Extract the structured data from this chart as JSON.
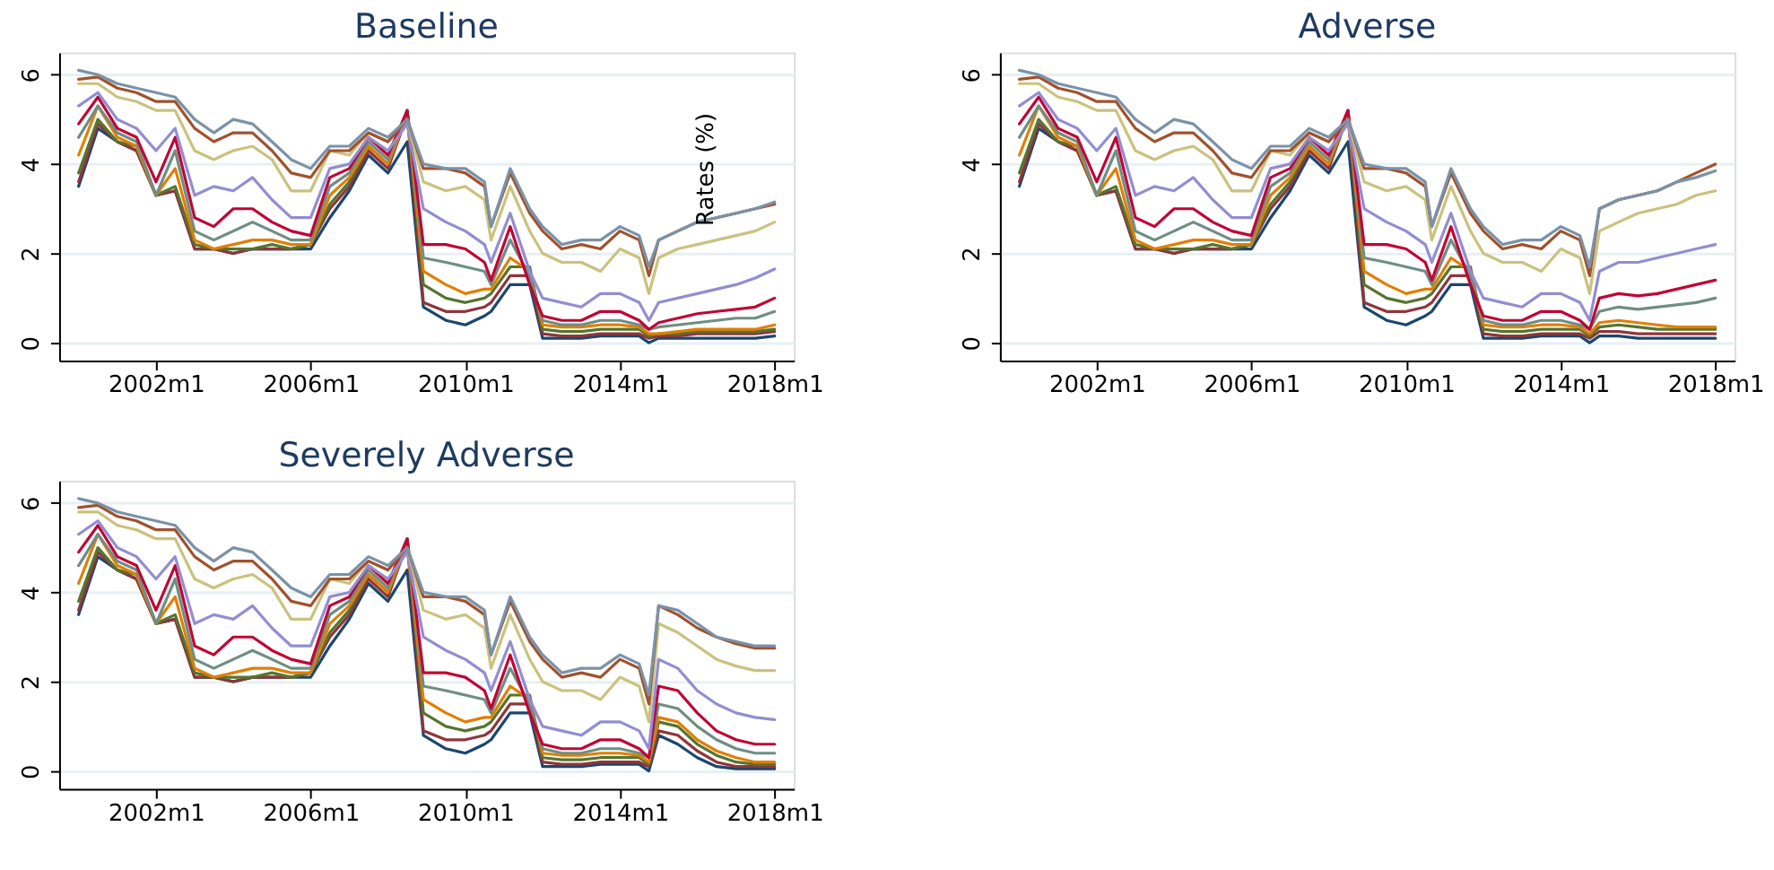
{
  "chart_data": [
    {
      "type": "line",
      "title": "Baseline",
      "x": [
        "2000-01",
        "2000-07",
        "2001-01",
        "2001-07",
        "2002-01",
        "2002-07",
        "2003-01",
        "2003-07",
        "2004-01",
        "2004-07",
        "2005-01",
        "2005-07",
        "2006-01",
        "2006-07",
        "2007-01",
        "2007-07",
        "2008-01",
        "2008-07",
        "2008-12",
        "2009-07",
        "2010-01",
        "2010-07",
        "2010-09",
        "2011-03",
        "2011-09",
        "2012-01",
        "2012-07",
        "2013-01",
        "2013-07",
        "2014-01",
        "2014-07",
        "2014-10",
        "2015-01",
        "2015-07",
        "2016-01",
        "2016-07",
        "2017-01",
        "2017-07",
        "2018-01"
      ],
      "xlim": [
        "1999-07",
        "2018-07"
      ],
      "xticks": [
        {
          "value": "2002-01",
          "label": "2002m1"
        },
        {
          "value": "2006-01",
          "label": "2006m1"
        },
        {
          "value": "2010-01",
          "label": "2010m1"
        },
        {
          "value": "2014-01",
          "label": "2014m1"
        },
        {
          "value": "2018-01",
          "label": "2018m1"
        }
      ],
      "ylim": [
        -0.4,
        6.5
      ],
      "yticks": [
        0,
        2,
        4,
        6
      ],
      "grid": "y",
      "annotations": [
        "Rates (%)"
      ],
      "series": [
        {
          "color": "#1a476f",
          "values": [
            3.5,
            4.8,
            4.5,
            4.3,
            3.3,
            3.4,
            2.1,
            2.1,
            2.0,
            2.1,
            2.1,
            2.1,
            2.1,
            2.8,
            3.4,
            4.2,
            3.8,
            4.5,
            0.8,
            0.5,
            0.4,
            0.6,
            0.7,
            1.3,
            1.3,
            0.1,
            0.1,
            0.1,
            0.15,
            0.15,
            0.15,
            0.0,
            0.1,
            0.1,
            0.1,
            0.1,
            0.1,
            0.1,
            0.15
          ]
        },
        {
          "color": "#90353b",
          "values": [
            3.6,
            4.9,
            4.5,
            4.3,
            3.3,
            3.4,
            2.1,
            2.1,
            2.0,
            2.1,
            2.1,
            2.1,
            2.2,
            3.0,
            3.5,
            4.3,
            3.9,
            5.1,
            0.9,
            0.7,
            0.7,
            0.8,
            0.9,
            1.5,
            1.5,
            0.2,
            0.15,
            0.15,
            0.2,
            0.2,
            0.2,
            0.1,
            0.15,
            0.15,
            0.2,
            0.2,
            0.2,
            0.2,
            0.25
          ]
        },
        {
          "color": "#55752f",
          "values": [
            3.8,
            5.0,
            4.5,
            4.4,
            3.3,
            3.5,
            2.2,
            2.1,
            2.1,
            2.1,
            2.2,
            2.1,
            2.2,
            3.1,
            3.6,
            4.4,
            4.0,
            5.2,
            1.3,
            1.0,
            0.9,
            1.0,
            1.1,
            1.7,
            1.7,
            0.3,
            0.25,
            0.25,
            0.3,
            0.3,
            0.3,
            0.15,
            0.2,
            0.2,
            0.25,
            0.25,
            0.25,
            0.25,
            0.3
          ]
        },
        {
          "color": "#e37e00",
          "values": [
            4.2,
            5.3,
            4.6,
            4.4,
            3.3,
            3.9,
            2.3,
            2.1,
            2.2,
            2.3,
            2.3,
            2.2,
            2.2,
            3.3,
            3.7,
            4.4,
            4.0,
            5.1,
            1.6,
            1.3,
            1.1,
            1.2,
            1.2,
            1.9,
            1.6,
            0.4,
            0.35,
            0.35,
            0.4,
            0.4,
            0.35,
            0.2,
            0.2,
            0.25,
            0.3,
            0.3,
            0.3,
            0.3,
            0.4
          ]
        },
        {
          "color": "#6e8e84",
          "values": [
            4.6,
            5.3,
            4.7,
            4.5,
            3.3,
            4.3,
            2.5,
            2.3,
            2.5,
            2.7,
            2.5,
            2.3,
            2.3,
            3.5,
            3.8,
            4.5,
            4.1,
            5.2,
            1.9,
            1.8,
            1.7,
            1.6,
            1.3,
            2.3,
            1.5,
            0.5,
            0.4,
            0.4,
            0.5,
            0.5,
            0.4,
            0.3,
            0.35,
            0.4,
            0.45,
            0.5,
            0.55,
            0.55,
            0.7
          ]
        },
        {
          "color": "#c10534",
          "values": [
            4.9,
            5.5,
            4.8,
            4.6,
            3.6,
            4.6,
            2.8,
            2.6,
            3.0,
            3.0,
            2.7,
            2.5,
            2.4,
            3.7,
            3.9,
            4.6,
            4.2,
            5.2,
            2.2,
            2.2,
            2.1,
            1.8,
            1.4,
            2.6,
            1.3,
            0.6,
            0.5,
            0.5,
            0.7,
            0.7,
            0.5,
            0.3,
            0.45,
            0.55,
            0.65,
            0.7,
            0.75,
            0.8,
            1.0
          ]
        },
        {
          "color": "#938dd2",
          "values": [
            5.3,
            5.6,
            5.0,
            4.8,
            4.3,
            4.8,
            3.3,
            3.5,
            3.4,
            3.7,
            3.2,
            2.8,
            2.8,
            3.9,
            4.0,
            4.6,
            4.3,
            4.9,
            3.0,
            2.7,
            2.5,
            2.2,
            1.8,
            2.9,
            1.6,
            1.0,
            0.9,
            0.8,
            1.1,
            1.1,
            0.9,
            0.5,
            0.9,
            1.0,
            1.1,
            1.2,
            1.3,
            1.45,
            1.65
          ]
        },
        {
          "color": "#cac27e",
          "values": [
            5.8,
            5.8,
            5.5,
            5.4,
            5.2,
            5.2,
            4.3,
            4.1,
            4.3,
            4.4,
            4.1,
            3.4,
            3.4,
            4.3,
            4.2,
            4.7,
            4.5,
            5.0,
            3.6,
            3.4,
            3.5,
            3.2,
            2.3,
            3.5,
            2.5,
            2.0,
            1.8,
            1.8,
            1.6,
            2.1,
            1.9,
            1.1,
            1.9,
            2.1,
            2.2,
            2.3,
            2.4,
            2.5,
            2.7
          ]
        },
        {
          "color": "#a0522d",
          "values": [
            5.9,
            5.95,
            5.7,
            5.6,
            5.4,
            5.4,
            4.8,
            4.5,
            4.7,
            4.7,
            4.3,
            3.8,
            3.7,
            4.3,
            4.3,
            4.7,
            4.5,
            5.0,
            3.9,
            3.9,
            3.8,
            3.5,
            2.6,
            3.8,
            2.9,
            2.5,
            2.1,
            2.2,
            2.1,
            2.5,
            2.3,
            1.5,
            2.3,
            2.5,
            2.7,
            2.8,
            2.9,
            3.0,
            3.1
          ]
        },
        {
          "color": "#7b92a8",
          "values": [
            6.1,
            6.0,
            5.8,
            5.7,
            5.6,
            5.5,
            5.0,
            4.7,
            5.0,
            4.9,
            4.5,
            4.1,
            3.9,
            4.4,
            4.4,
            4.8,
            4.6,
            5.0,
            4.0,
            3.9,
            3.9,
            3.6,
            2.6,
            3.9,
            3.0,
            2.6,
            2.2,
            2.3,
            2.3,
            2.6,
            2.4,
            1.7,
            2.3,
            2.5,
            2.7,
            2.8,
            2.9,
            3.0,
            3.15
          ]
        }
      ]
    },
    {
      "type": "line",
      "title": "Adverse",
      "x": [
        "2000-01",
        "2000-07",
        "2001-01",
        "2001-07",
        "2002-01",
        "2002-07",
        "2003-01",
        "2003-07",
        "2004-01",
        "2004-07",
        "2005-01",
        "2005-07",
        "2006-01",
        "2006-07",
        "2007-01",
        "2007-07",
        "2008-01",
        "2008-07",
        "2008-12",
        "2009-07",
        "2010-01",
        "2010-07",
        "2010-09",
        "2011-03",
        "2011-09",
        "2012-01",
        "2012-07",
        "2013-01",
        "2013-07",
        "2014-01",
        "2014-07",
        "2014-10",
        "2015-01",
        "2015-07",
        "2016-01",
        "2016-07",
        "2017-01",
        "2017-07",
        "2018-01"
      ],
      "xlim": [
        "1999-07",
        "2018-07"
      ],
      "xticks": [
        {
          "value": "2002-01",
          "label": "2002m1"
        },
        {
          "value": "2006-01",
          "label": "2006m1"
        },
        {
          "value": "2010-01",
          "label": "2010m1"
        },
        {
          "value": "2014-01",
          "label": "2014m1"
        },
        {
          "value": "2018-01",
          "label": "2018m1"
        }
      ],
      "ylim": [
        -0.4,
        6.5
      ],
      "yticks": [
        0,
        2,
        4,
        6
      ],
      "grid": "y",
      "series": [
        {
          "color": "#1a476f",
          "values": [
            3.5,
            4.8,
            4.5,
            4.3,
            3.3,
            3.4,
            2.1,
            2.1,
            2.0,
            2.1,
            2.1,
            2.1,
            2.1,
            2.8,
            3.4,
            4.2,
            3.8,
            4.5,
            0.8,
            0.5,
            0.4,
            0.6,
            0.7,
            1.3,
            1.3,
            0.1,
            0.1,
            0.1,
            0.15,
            0.15,
            0.15,
            0.0,
            0.15,
            0.15,
            0.1,
            0.1,
            0.1,
            0.1,
            0.1
          ]
        },
        {
          "color": "#90353b",
          "values": [
            3.6,
            4.9,
            4.5,
            4.3,
            3.3,
            3.4,
            2.1,
            2.1,
            2.0,
            2.1,
            2.1,
            2.1,
            2.2,
            3.0,
            3.5,
            4.3,
            3.9,
            5.1,
            0.9,
            0.7,
            0.7,
            0.8,
            0.9,
            1.5,
            1.5,
            0.2,
            0.15,
            0.15,
            0.2,
            0.2,
            0.2,
            0.1,
            0.25,
            0.25,
            0.2,
            0.2,
            0.2,
            0.2,
            0.2
          ]
        },
        {
          "color": "#55752f",
          "values": [
            3.8,
            5.0,
            4.5,
            4.4,
            3.3,
            3.5,
            2.2,
            2.1,
            2.1,
            2.1,
            2.2,
            2.1,
            2.2,
            3.1,
            3.6,
            4.4,
            4.0,
            5.2,
            1.3,
            1.0,
            0.9,
            1.0,
            1.1,
            1.7,
            1.7,
            0.3,
            0.25,
            0.25,
            0.3,
            0.3,
            0.3,
            0.15,
            0.35,
            0.4,
            0.35,
            0.3,
            0.3,
            0.3,
            0.3
          ]
        },
        {
          "color": "#e37e00",
          "values": [
            4.2,
            5.3,
            4.6,
            4.4,
            3.3,
            3.9,
            2.3,
            2.1,
            2.2,
            2.3,
            2.3,
            2.2,
            2.2,
            3.3,
            3.7,
            4.4,
            4.0,
            5.1,
            1.6,
            1.3,
            1.1,
            1.2,
            1.2,
            1.9,
            1.6,
            0.4,
            0.35,
            0.35,
            0.4,
            0.4,
            0.35,
            0.2,
            0.45,
            0.5,
            0.45,
            0.4,
            0.35,
            0.35,
            0.35
          ]
        },
        {
          "color": "#6e8e84",
          "values": [
            4.6,
            5.3,
            4.7,
            4.5,
            3.3,
            4.3,
            2.5,
            2.3,
            2.5,
            2.7,
            2.5,
            2.3,
            2.3,
            3.5,
            3.8,
            4.5,
            4.1,
            5.2,
            1.9,
            1.8,
            1.7,
            1.6,
            1.3,
            2.3,
            1.5,
            0.5,
            0.4,
            0.4,
            0.5,
            0.5,
            0.4,
            0.3,
            0.7,
            0.8,
            0.75,
            0.8,
            0.85,
            0.9,
            1.0
          ]
        },
        {
          "color": "#c10534",
          "values": [
            4.9,
            5.5,
            4.8,
            4.6,
            3.6,
            4.6,
            2.8,
            2.6,
            3.0,
            3.0,
            2.7,
            2.5,
            2.4,
            3.7,
            3.9,
            4.6,
            4.2,
            5.2,
            2.2,
            2.2,
            2.1,
            1.8,
            1.4,
            2.6,
            1.3,
            0.6,
            0.5,
            0.5,
            0.7,
            0.7,
            0.5,
            0.3,
            1.0,
            1.1,
            1.05,
            1.1,
            1.2,
            1.3,
            1.4
          ]
        },
        {
          "color": "#938dd2",
          "values": [
            5.3,
            5.6,
            5.0,
            4.8,
            4.3,
            4.8,
            3.3,
            3.5,
            3.4,
            3.7,
            3.2,
            2.8,
            2.8,
            3.9,
            4.0,
            4.6,
            4.3,
            4.9,
            3.0,
            2.7,
            2.5,
            2.2,
            1.8,
            2.9,
            1.6,
            1.0,
            0.9,
            0.8,
            1.1,
            1.1,
            0.9,
            0.5,
            1.6,
            1.8,
            1.8,
            1.9,
            2.0,
            2.1,
            2.2
          ]
        },
        {
          "color": "#cac27e",
          "values": [
            5.8,
            5.8,
            5.5,
            5.4,
            5.2,
            5.2,
            4.3,
            4.1,
            4.3,
            4.4,
            4.1,
            3.4,
            3.4,
            4.3,
            4.2,
            4.7,
            4.5,
            5.0,
            3.6,
            3.4,
            3.5,
            3.2,
            2.3,
            3.5,
            2.5,
            2.0,
            1.8,
            1.8,
            1.6,
            2.1,
            1.9,
            1.1,
            2.5,
            2.7,
            2.9,
            3.0,
            3.1,
            3.3,
            3.4
          ]
        },
        {
          "color": "#a0522d",
          "values": [
            5.9,
            5.95,
            5.7,
            5.6,
            5.4,
            5.4,
            4.8,
            4.5,
            4.7,
            4.7,
            4.3,
            3.8,
            3.7,
            4.3,
            4.3,
            4.7,
            4.5,
            5.0,
            3.9,
            3.9,
            3.8,
            3.5,
            2.6,
            3.8,
            2.9,
            2.5,
            2.1,
            2.2,
            2.1,
            2.5,
            2.3,
            1.5,
            3.0,
            3.2,
            3.3,
            3.4,
            3.6,
            3.8,
            4.0
          ]
        },
        {
          "color": "#7b92a8",
          "values": [
            6.1,
            6.0,
            5.8,
            5.7,
            5.6,
            5.5,
            5.0,
            4.7,
            5.0,
            4.9,
            4.5,
            4.1,
            3.9,
            4.4,
            4.4,
            4.8,
            4.6,
            5.0,
            4.0,
            3.9,
            3.9,
            3.6,
            2.6,
            3.9,
            3.0,
            2.6,
            2.2,
            2.3,
            2.3,
            2.6,
            2.4,
            1.7,
            3.0,
            3.2,
            3.3,
            3.4,
            3.6,
            3.7,
            3.85
          ]
        }
      ]
    },
    {
      "type": "line",
      "title": "Severely Adverse",
      "x": [
        "2000-01",
        "2000-07",
        "2001-01",
        "2001-07",
        "2002-01",
        "2002-07",
        "2003-01",
        "2003-07",
        "2004-01",
        "2004-07",
        "2005-01",
        "2005-07",
        "2006-01",
        "2006-07",
        "2007-01",
        "2007-07",
        "2008-01",
        "2008-07",
        "2008-12",
        "2009-07",
        "2010-01",
        "2010-07",
        "2010-09",
        "2011-03",
        "2011-09",
        "2012-01",
        "2012-07",
        "2013-01",
        "2013-07",
        "2014-01",
        "2014-07",
        "2014-10",
        "2015-01",
        "2015-07",
        "2016-01",
        "2016-07",
        "2017-01",
        "2017-07",
        "2018-01"
      ],
      "xlim": [
        "1999-07",
        "2018-07"
      ],
      "xticks": [
        {
          "value": "2002-01",
          "label": "2002m1"
        },
        {
          "value": "2006-01",
          "label": "2006m1"
        },
        {
          "value": "2010-01",
          "label": "2010m1"
        },
        {
          "value": "2014-01",
          "label": "2014m1"
        },
        {
          "value": "2018-01",
          "label": "2018m1"
        }
      ],
      "ylim": [
        -0.4,
        6.5
      ],
      "yticks": [
        0,
        2,
        4,
        6
      ],
      "grid": "y",
      "series": [
        {
          "color": "#1a476f",
          "values": [
            3.5,
            4.8,
            4.5,
            4.3,
            3.3,
            3.4,
            2.1,
            2.1,
            2.0,
            2.1,
            2.1,
            2.1,
            2.1,
            2.8,
            3.4,
            4.2,
            3.8,
            4.5,
            0.8,
            0.5,
            0.4,
            0.6,
            0.7,
            1.3,
            1.3,
            0.1,
            0.1,
            0.1,
            0.15,
            0.15,
            0.15,
            0.0,
            0.8,
            0.6,
            0.3,
            0.1,
            0.05,
            0.05,
            0.05
          ]
        },
        {
          "color": "#90353b",
          "values": [
            3.6,
            4.9,
            4.5,
            4.3,
            3.3,
            3.4,
            2.1,
            2.1,
            2.0,
            2.1,
            2.1,
            2.1,
            2.2,
            3.0,
            3.5,
            4.3,
            3.9,
            5.1,
            0.9,
            0.7,
            0.7,
            0.8,
            0.9,
            1.5,
            1.5,
            0.2,
            0.15,
            0.15,
            0.2,
            0.2,
            0.2,
            0.1,
            0.9,
            0.8,
            0.45,
            0.2,
            0.1,
            0.1,
            0.1
          ]
        },
        {
          "color": "#55752f",
          "values": [
            3.8,
            5.0,
            4.5,
            4.4,
            3.3,
            3.5,
            2.2,
            2.1,
            2.1,
            2.1,
            2.2,
            2.1,
            2.2,
            3.1,
            3.6,
            4.4,
            4.0,
            5.2,
            1.3,
            1.0,
            0.9,
            1.0,
            1.1,
            1.7,
            1.7,
            0.3,
            0.25,
            0.25,
            0.3,
            0.3,
            0.3,
            0.15,
            1.1,
            1.0,
            0.6,
            0.35,
            0.2,
            0.15,
            0.15
          ]
        },
        {
          "color": "#e37e00",
          "values": [
            4.2,
            5.3,
            4.6,
            4.4,
            3.3,
            3.9,
            2.3,
            2.1,
            2.2,
            2.3,
            2.3,
            2.2,
            2.2,
            3.3,
            3.7,
            4.4,
            4.0,
            5.1,
            1.6,
            1.3,
            1.1,
            1.2,
            1.2,
            1.9,
            1.6,
            0.4,
            0.35,
            0.35,
            0.4,
            0.4,
            0.35,
            0.2,
            1.2,
            1.1,
            0.7,
            0.45,
            0.3,
            0.2,
            0.2
          ]
        },
        {
          "color": "#6e8e84",
          "values": [
            4.6,
            5.3,
            4.7,
            4.5,
            3.3,
            4.3,
            2.5,
            2.3,
            2.5,
            2.7,
            2.5,
            2.3,
            2.3,
            3.5,
            3.8,
            4.5,
            4.1,
            5.2,
            1.9,
            1.8,
            1.7,
            1.6,
            1.3,
            2.3,
            1.5,
            0.5,
            0.4,
            0.4,
            0.5,
            0.5,
            0.4,
            0.3,
            1.5,
            1.4,
            1.0,
            0.7,
            0.5,
            0.4,
            0.4
          ]
        },
        {
          "color": "#c10534",
          "values": [
            4.9,
            5.5,
            4.8,
            4.6,
            3.6,
            4.6,
            2.8,
            2.6,
            3.0,
            3.0,
            2.7,
            2.5,
            2.4,
            3.7,
            3.9,
            4.6,
            4.2,
            5.2,
            2.2,
            2.2,
            2.1,
            1.8,
            1.4,
            2.6,
            1.3,
            0.6,
            0.5,
            0.5,
            0.7,
            0.7,
            0.5,
            0.3,
            1.9,
            1.8,
            1.3,
            0.9,
            0.7,
            0.6,
            0.6
          ]
        },
        {
          "color": "#938dd2",
          "values": [
            5.3,
            5.6,
            5.0,
            4.8,
            4.3,
            4.8,
            3.3,
            3.5,
            3.4,
            3.7,
            3.2,
            2.8,
            2.8,
            3.9,
            4.0,
            4.6,
            4.3,
            4.9,
            3.0,
            2.7,
            2.5,
            2.2,
            1.8,
            2.9,
            1.6,
            1.0,
            0.9,
            0.8,
            1.1,
            1.1,
            0.9,
            0.5,
            2.5,
            2.3,
            1.8,
            1.5,
            1.3,
            1.2,
            1.15
          ]
        },
        {
          "color": "#cac27e",
          "values": [
            5.8,
            5.8,
            5.5,
            5.4,
            5.2,
            5.2,
            4.3,
            4.1,
            4.3,
            4.4,
            4.1,
            3.4,
            3.4,
            4.3,
            4.2,
            4.7,
            4.5,
            5.0,
            3.6,
            3.4,
            3.5,
            3.2,
            2.3,
            3.5,
            2.5,
            2.0,
            1.8,
            1.8,
            1.6,
            2.1,
            1.9,
            1.1,
            3.3,
            3.1,
            2.8,
            2.5,
            2.35,
            2.25,
            2.25
          ]
        },
        {
          "color": "#a0522d",
          "values": [
            5.9,
            5.95,
            5.7,
            5.6,
            5.4,
            5.4,
            4.8,
            4.5,
            4.7,
            4.7,
            4.3,
            3.8,
            3.7,
            4.3,
            4.3,
            4.7,
            4.5,
            5.0,
            3.9,
            3.9,
            3.8,
            3.5,
            2.6,
            3.8,
            2.9,
            2.5,
            2.1,
            2.2,
            2.1,
            2.5,
            2.3,
            1.5,
            3.7,
            3.5,
            3.2,
            3.0,
            2.85,
            2.75,
            2.75
          ]
        },
        {
          "color": "#7b92a8",
          "values": [
            6.1,
            6.0,
            5.8,
            5.7,
            5.6,
            5.5,
            5.0,
            4.7,
            5.0,
            4.9,
            4.5,
            4.1,
            3.9,
            4.4,
            4.4,
            4.8,
            4.6,
            5.0,
            4.0,
            3.9,
            3.9,
            3.6,
            2.6,
            3.9,
            3.0,
            2.6,
            2.2,
            2.3,
            2.3,
            2.6,
            2.4,
            1.7,
            3.7,
            3.6,
            3.3,
            3.0,
            2.9,
            2.8,
            2.8
          ]
        }
      ]
    }
  ]
}
